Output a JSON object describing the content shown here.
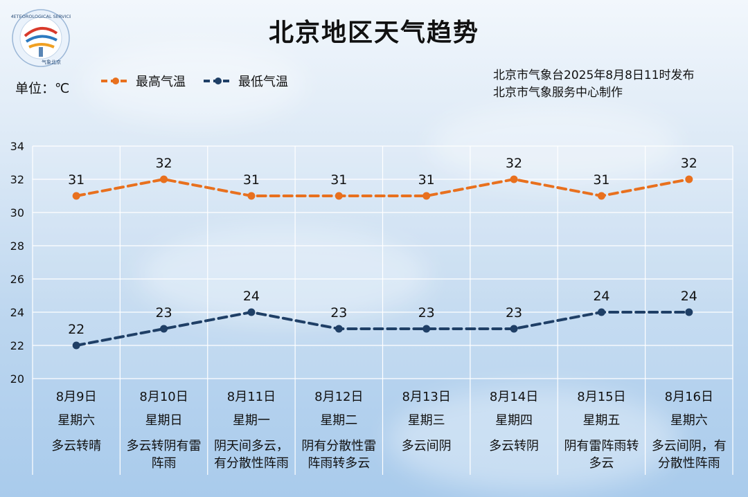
{
  "title": "北京地区天气趋势",
  "unit_label": "单位：℃",
  "legend": [
    {
      "label": "最高气温",
      "color": "#e8701e"
    },
    {
      "label": "最低气温",
      "color": "#1f3f66"
    }
  ],
  "publisher": {
    "line1": "北京市气象台2025年8月8日11时发布",
    "line2": "北京市气象服务中心制作"
  },
  "logo": {
    "text_top": "METEOROLOGICAL SERVICE",
    "text_bottom": "气象北京"
  },
  "chart_data": {
    "type": "line",
    "categories": [
      "8月9日",
      "8月10日",
      "8月11日",
      "8月12日",
      "8月13日",
      "8月14日",
      "8月15日",
      "8月16日"
    ],
    "weekdays": [
      "星期六",
      "星期日",
      "星期一",
      "星期二",
      "星期三",
      "星期四",
      "星期五",
      "星期六"
    ],
    "weather": [
      [
        "多云转晴"
      ],
      [
        "多云转阴有雷",
        "阵雨"
      ],
      [
        "阴天间多云，",
        "有分散性阵雨"
      ],
      [
        "阴有分散性雷",
        "阵雨转多云"
      ],
      [
        "多云间阴"
      ],
      [
        "多云转阴"
      ],
      [
        "阴有雷阵雨转",
        "多云"
      ],
      [
        "多云间阴，有",
        "分散性阵雨"
      ]
    ],
    "series": [
      {
        "name": "最高气温",
        "values": [
          31,
          32,
          31,
          31,
          31,
          32,
          31,
          32
        ],
        "color": "#e8701e"
      },
      {
        "name": "最低气温",
        "values": [
          22,
          23,
          24,
          23,
          23,
          23,
          24,
          24
        ],
        "color": "#1f3f66"
      }
    ],
    "ylim": [
      20,
      34
    ],
    "yticks": [
      20,
      22,
      24,
      26,
      28,
      30,
      32,
      34
    ],
    "grid": true,
    "legend_position": "top-left"
  }
}
